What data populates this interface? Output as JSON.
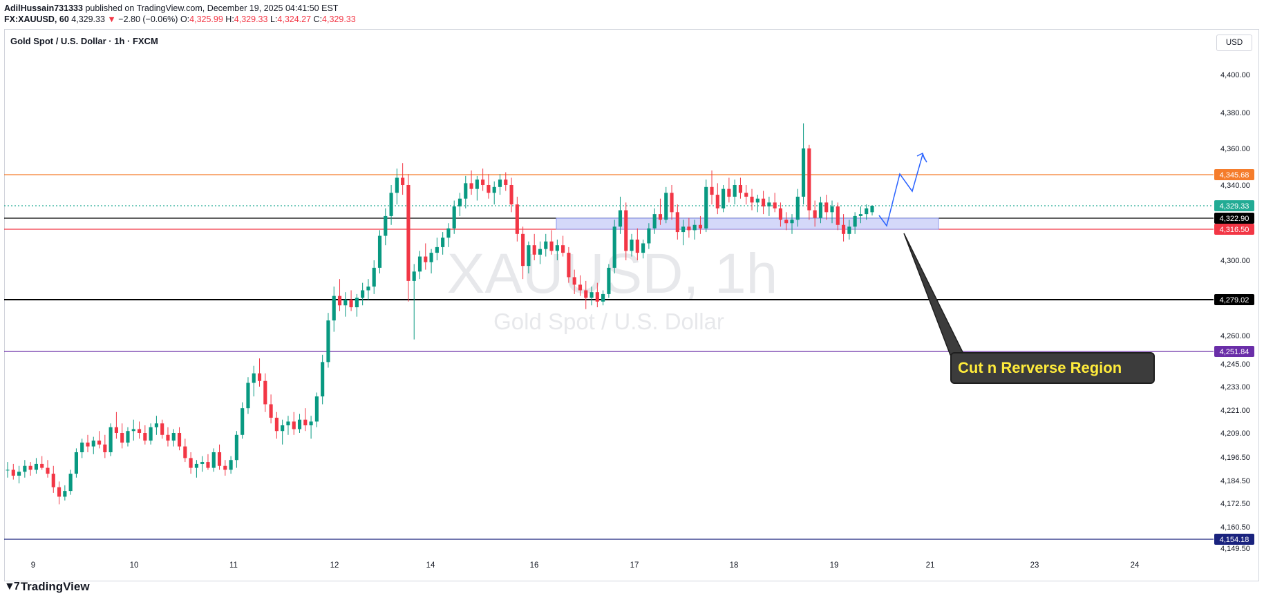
{
  "header": {
    "author": "AdilHussain731333",
    "published": "published on TradingView.com, December 19, 2025 04:41:50 EST",
    "symbol": "FX:XAUUSD, 60",
    "last": "4,329.33",
    "change": "−2.80 (−0.06%)",
    "o_label": "O:",
    "o": "4,325.99",
    "h_label": "H:",
    "h": "4,329.33",
    "l_label": "L:",
    "l": "4,324.27",
    "c_label": "C:",
    "c": "4,329.33"
  },
  "chart_title": "Gold Spot / U.S. Dollar · 1h · FXCM",
  "currency": "USD",
  "watermark": {
    "symbol": "XAUUSD, 1h",
    "name": "Gold Spot / U.S. Dollar"
  },
  "callout_text": "Cut n Rerverse Region",
  "brand": "TradingView",
  "colors": {
    "up": "#089981",
    "down": "#f23645",
    "zone": "#c5cbf7",
    "arrow": "#2962ff"
  },
  "chart_data": {
    "type": "candlestick",
    "x_ticks": [
      "9",
      "10",
      "11",
      "12",
      "14",
      "16",
      "17",
      "18",
      "19",
      "21",
      "23",
      "24"
    ],
    "y_ticks": [
      "4,400.00",
      "4,380.00",
      "4,360.00",
      "4,340.00",
      "4,300.00",
      "4,260.00",
      "4,245.00",
      "4,233.00",
      "4,221.00",
      "4,209.00",
      "4,196.50",
      "4,184.50",
      "4,172.50",
      "4,160.50",
      "4,149.50"
    ],
    "levels": [
      {
        "label": "4,345.68",
        "color": "#f57c2b"
      },
      {
        "label": "4,329.33",
        "color": "#22ab94"
      },
      {
        "label": "4,322.90",
        "color": "#000000"
      },
      {
        "label": "4,316.50",
        "color": "#f23645"
      },
      {
        "label": "4,279.02",
        "color": "#000000"
      },
      {
        "label": "4,251.84",
        "color": "#6a2ea8"
      },
      {
        "label": "4,154.18",
        "color": "#1a237e"
      }
    ],
    "zone": {
      "low": 4316.5,
      "high": 4322.9
    },
    "candles": [
      [
        4190,
        4194,
        4186,
        4190
      ],
      [
        4190,
        4193,
        4185,
        4187
      ],
      [
        4187,
        4192,
        4183,
        4189
      ],
      [
        4189,
        4195,
        4186,
        4192
      ],
      [
        4192,
        4194,
        4187,
        4190
      ],
      [
        4190,
        4196,
        4188,
        4193
      ],
      [
        4193,
        4197,
        4190,
        4191
      ],
      [
        4191,
        4195,
        4186,
        4188
      ],
      [
        4188,
        4192,
        4178,
        4181
      ],
      [
        4181,
        4184,
        4172,
        4176
      ],
      [
        4176,
        4182,
        4174,
        4179
      ],
      [
        4179,
        4190,
        4177,
        4188
      ],
      [
        4188,
        4201,
        4186,
        4199
      ],
      [
        4199,
        4206,
        4196,
        4204
      ],
      [
        4204,
        4208,
        4199,
        4202
      ],
      [
        4202,
        4207,
        4198,
        4205
      ],
      [
        4205,
        4210,
        4201,
        4203
      ],
      [
        4203,
        4208,
        4196,
        4199
      ],
      [
        4199,
        4214,
        4197,
        4212
      ],
      [
        4212,
        4220,
        4206,
        4209
      ],
      [
        4209,
        4214,
        4201,
        4204
      ],
      [
        4204,
        4212,
        4202,
        4210
      ],
      [
        4210,
        4216,
        4205,
        4211
      ],
      [
        4211,
        4215,
        4206,
        4209
      ],
      [
        4209,
        4213,
        4203,
        4205
      ],
      [
        4205,
        4214,
        4203,
        4212
      ],
      [
        4212,
        4218,
        4208,
        4214
      ],
      [
        4214,
        4216,
        4206,
        4208
      ],
      [
        4208,
        4212,
        4202,
        4205
      ],
      [
        4205,
        4211,
        4202,
        4209
      ],
      [
        4209,
        4212,
        4200,
        4202
      ],
      [
        4202,
        4206,
        4194,
        4196
      ],
      [
        4196,
        4199,
        4188,
        4191
      ],
      [
        4191,
        4195,
        4186,
        4193
      ],
      [
        4193,
        4197,
        4189,
        4194
      ],
      [
        4194,
        4198,
        4190,
        4191
      ],
      [
        4191,
        4201,
        4189,
        4199
      ],
      [
        4199,
        4203,
        4190,
        4192
      ],
      [
        4192,
        4195,
        4187,
        4190
      ],
      [
        4190,
        4197,
        4188,
        4195
      ],
      [
        4195,
        4210,
        4191,
        4208
      ],
      [
        4208,
        4225,
        4206,
        4222
      ],
      [
        4222,
        4238,
        4219,
        4235
      ],
      [
        4235,
        4244,
        4228,
        4240
      ],
      [
        4240,
        4248,
        4233,
        4236
      ],
      [
        4236,
        4240,
        4220,
        4224
      ],
      [
        4224,
        4229,
        4214,
        4217
      ],
      [
        4217,
        4220,
        4206,
        4210
      ],
      [
        4210,
        4216,
        4203,
        4213
      ],
      [
        4213,
        4218,
        4208,
        4215
      ],
      [
        4215,
        4220,
        4208,
        4211
      ],
      [
        4211,
        4219,
        4209,
        4216
      ],
      [
        4216,
        4222,
        4210,
        4213
      ],
      [
        4213,
        4218,
        4206,
        4215
      ],
      [
        4215,
        4230,
        4212,
        4228
      ],
      [
        4228,
        4250,
        4224,
        4246
      ],
      [
        4246,
        4272,
        4243,
        4268
      ],
      [
        4268,
        4286,
        4262,
        4281
      ],
      [
        4281,
        4290,
        4273,
        4276
      ],
      [
        4276,
        4283,
        4270,
        4279
      ],
      [
        4279,
        4284,
        4273,
        4275
      ],
      [
        4275,
        4282,
        4270,
        4280
      ],
      [
        4280,
        4288,
        4276,
        4284
      ],
      [
        4284,
        4290,
        4279,
        4286
      ],
      [
        4286,
        4300,
        4282,
        4296
      ],
      [
        4296,
        4316,
        4293,
        4313
      ],
      [
        4313,
        4328,
        4308,
        4324
      ],
      [
        4324,
        4340,
        4319,
        4336
      ],
      [
        4336,
        4349,
        4330,
        4344
      ],
      [
        4344,
        4352,
        4335,
        4340
      ],
      [
        4340,
        4346,
        4278,
        4289
      ],
      [
        4289,
        4298,
        4258,
        4294
      ],
      [
        4294,
        4305,
        4290,
        4302
      ],
      [
        4302,
        4309,
        4295,
        4299
      ],
      [
        4299,
        4306,
        4293,
        4304
      ],
      [
        4304,
        4312,
        4300,
        4307
      ],
      [
        4307,
        4315,
        4303,
        4312
      ],
      [
        4312,
        4320,
        4307,
        4317
      ],
      [
        4317,
        4332,
        4314,
        4329
      ],
      [
        4329,
        4336,
        4324,
        4333
      ],
      [
        4333,
        4345,
        4328,
        4341
      ],
      [
        4341,
        4348,
        4335,
        4338
      ],
      [
        4338,
        4345,
        4332,
        4343
      ],
      [
        4343,
        4349,
        4337,
        4340
      ],
      [
        4340,
        4346,
        4333,
        4336
      ],
      [
        4336,
        4342,
        4330,
        4339
      ],
      [
        4339,
        4346,
        4335,
        4343
      ],
      [
        4343,
        4347,
        4337,
        4340
      ],
      [
        4340,
        4344,
        4326,
        4330
      ],
      [
        4330,
        4334,
        4310,
        4314
      ],
      [
        4314,
        4318,
        4290,
        4297
      ],
      [
        4297,
        4310,
        4293,
        4308
      ],
      [
        4308,
        4314,
        4300,
        4303
      ],
      [
        4303,
        4310,
        4298,
        4306
      ],
      [
        4306,
        4314,
        4302,
        4310
      ],
      [
        4310,
        4316,
        4303,
        4305
      ],
      [
        4305,
        4311,
        4300,
        4308
      ],
      [
        4308,
        4313,
        4302,
        4304
      ],
      [
        4304,
        4307,
        4288,
        4291
      ],
      [
        4291,
        4295,
        4282,
        4287
      ],
      [
        4287,
        4292,
        4281,
        4284
      ],
      [
        4284,
        4289,
        4274,
        4280
      ],
      [
        4280,
        4286,
        4276,
        4283
      ],
      [
        4283,
        4288,
        4275,
        4278
      ],
      [
        4278,
        4284,
        4276,
        4282
      ],
      [
        4282,
        4298,
        4280,
        4296
      ],
      [
        4296,
        4322,
        4293,
        4318
      ],
      [
        4318,
        4334,
        4314,
        4327
      ],
      [
        4327,
        4331,
        4300,
        4305
      ],
      [
        4305,
        4314,
        4302,
        4311
      ],
      [
        4311,
        4317,
        4300,
        4304
      ],
      [
        4304,
        4311,
        4301,
        4309
      ],
      [
        4309,
        4320,
        4306,
        4317
      ],
      [
        4317,
        4328,
        4314,
        4325
      ],
      [
        4325,
        4333,
        4319,
        4322
      ],
      [
        4322,
        4339,
        4320,
        4336
      ],
      [
        4336,
        4340,
        4322,
        4326
      ],
      [
        4326,
        4330,
        4311,
        4315
      ],
      [
        4315,
        4322,
        4308,
        4318
      ],
      [
        4318,
        4323,
        4312,
        4316
      ],
      [
        4316,
        4322,
        4311,
        4319
      ],
      [
        4319,
        4324,
        4314,
        4317
      ],
      [
        4317,
        4343,
        4315,
        4339
      ],
      [
        4339,
        4348,
        4330,
        4335
      ],
      [
        4335,
        4341,
        4325,
        4328
      ],
      [
        4328,
        4340,
        4326,
        4338
      ],
      [
        4338,
        4344,
        4331,
        4334
      ],
      [
        4334,
        4343,
        4330,
        4340
      ],
      [
        4340,
        4344,
        4333,
        4336
      ],
      [
        4336,
        4340,
        4330,
        4334
      ],
      [
        4334,
        4338,
        4327,
        4331
      ],
      [
        4331,
        4335,
        4326,
        4333
      ],
      [
        4333,
        4337,
        4325,
        4329
      ],
      [
        4329,
        4334,
        4324,
        4331
      ],
      [
        4331,
        4336,
        4326,
        4328
      ],
      [
        4328,
        4331,
        4318,
        4322
      ],
      [
        4322,
        4326,
        4316,
        4320
      ],
      [
        4320,
        4325,
        4314,
        4322
      ],
      [
        4322,
        4338,
        4318,
        4334
      ],
      [
        4334,
        4374,
        4330,
        4360
      ],
      [
        4360,
        4362,
        4322,
        4327
      ],
      [
        4327,
        4332,
        4318,
        4323
      ],
      [
        4323,
        4334,
        4320,
        4331
      ],
      [
        4331,
        4335,
        4322,
        4326
      ],
      [
        4326,
        4332,
        4320,
        4329
      ],
      [
        4329,
        4331,
        4316,
        4319
      ],
      [
        4319,
        4325,
        4310,
        4314
      ],
      [
        4314,
        4322,
        4311,
        4318
      ],
      [
        4318,
        4326,
        4314,
        4324
      ],
      [
        4324,
        4329,
        4320,
        4325
      ],
      [
        4325,
        4330,
        4322,
        4328
      ],
      [
        4325.99,
        4329.33,
        4324.27,
        4329.33
      ]
    ]
  }
}
